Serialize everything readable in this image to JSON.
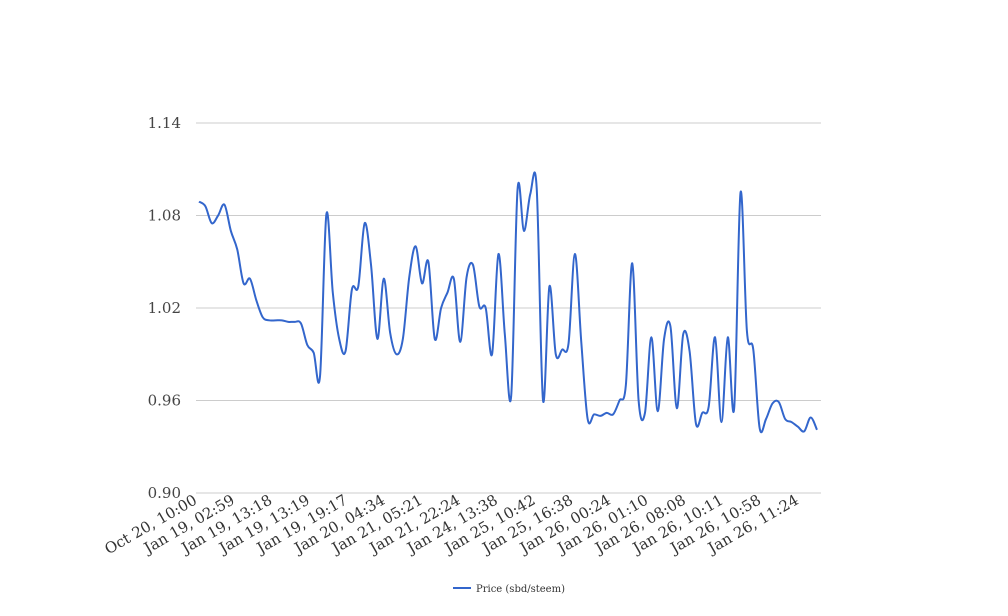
{
  "chart_data": {
    "type": "line",
    "title": "",
    "xlabel": "",
    "ylabel": "",
    "ylim": [
      0.9,
      1.14
    ],
    "yticks": [
      "0.90",
      "0.96",
      "1.02",
      "1.08",
      "1.14"
    ],
    "grid": true,
    "legend_position": "bottom",
    "line_color": "#3366cc",
    "grid_color": "#cccccc",
    "x_tick_labels": [
      "Oct 20, 10:00",
      "Jan 19, 02:59",
      "Jan 19, 13:18",
      "Jan 19, 13:19",
      "Jan 19, 19:17",
      "Jan 20, 04:34",
      "Jan 21, 05:21",
      "Jan 21, 22:24",
      "Jan 24, 13:38",
      "Jan 25, 10:42",
      "Jan 25, 16:38",
      "Jan 26, 00:24",
      "Jan 26, 01:10",
      "Jan 26, 08:08",
      "Jan 26, 10:11",
      "Jan 26, 10:58",
      "Jan 26, 11:24"
    ],
    "series": [
      {
        "name": "Price (sbd/steem)",
        "values": [
          1.089,
          1.086,
          1.075,
          1.08,
          1.087,
          1.07,
          1.058,
          1.036,
          1.039,
          1.025,
          1.014,
          1.012,
          1.012,
          1.012,
          1.011,
          1.011,
          1.01,
          0.996,
          0.991,
          0.976,
          1.081,
          1.03,
          1.0,
          0.992,
          1.032,
          1.034,
          1.075,
          1.048,
          1.0,
          1.039,
          1.004,
          0.99,
          1.0,
          1.04,
          1.06,
          1.036,
          1.05,
          1.0,
          1.02,
          1.03,
          1.039,
          0.998,
          1.04,
          1.048,
          1.021,
          1.02,
          0.99,
          1.055,
          1.003,
          0.963,
          1.097,
          1.07,
          1.094,
          1.098,
          0.96,
          1.034,
          0.99,
          0.993,
          0.997,
          1.055,
          0.998,
          0.948,
          0.951,
          0.95,
          0.952,
          0.951,
          0.96,
          0.97,
          1.049,
          0.96,
          0.952,
          1.001,
          0.953,
          1.0,
          1.008,
          0.955,
          1.003,
          0.992,
          0.945,
          0.952,
          0.956,
          1.001,
          0.946,
          1.001,
          0.955,
          1.095,
          1.005,
          0.993,
          0.942,
          0.948,
          0.958,
          0.959,
          0.948,
          0.946,
          0.943,
          0.94,
          0.949,
          0.941
        ]
      }
    ]
  }
}
